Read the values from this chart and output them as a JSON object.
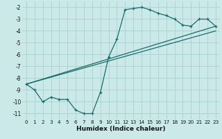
{
  "xlabel": "Humidex (Indice chaleur)",
  "background_color": "#cce9e9",
  "grid_color": "#aad0d0",
  "line_color": "#1a6b6b",
  "xlim": [
    -0.5,
    23.5
  ],
  "ylim": [
    -11.5,
    -1.5
  ],
  "yticks": [
    -2,
    -3,
    -4,
    -5,
    -6,
    -7,
    -8,
    -9,
    -10,
    -11
  ],
  "xticks": [
    0,
    1,
    2,
    3,
    4,
    5,
    6,
    7,
    8,
    9,
    10,
    11,
    12,
    13,
    14,
    15,
    16,
    17,
    18,
    19,
    20,
    21,
    22,
    23
  ],
  "series1_x": [
    0,
    1,
    2,
    3,
    4,
    5,
    6,
    7,
    8,
    9,
    10,
    11,
    12,
    13,
    14,
    15,
    16,
    17,
    18,
    19,
    20,
    21,
    22,
    23
  ],
  "series1_y": [
    -8.5,
    -9.0,
    -10.0,
    -9.6,
    -9.8,
    -9.8,
    -10.7,
    -11.0,
    -11.0,
    -9.2,
    -6.2,
    -4.7,
    -2.2,
    -2.1,
    -2.0,
    -2.2,
    -2.5,
    -2.7,
    -3.0,
    -3.5,
    -3.6,
    -3.0,
    -3.0,
    -3.6
  ],
  "series2_x": [
    0,
    23
  ],
  "series2_y": [
    -8.5,
    -3.6
  ],
  "series3_x": [
    0,
    23
  ],
  "series3_y": [
    -8.5,
    -4.0
  ]
}
